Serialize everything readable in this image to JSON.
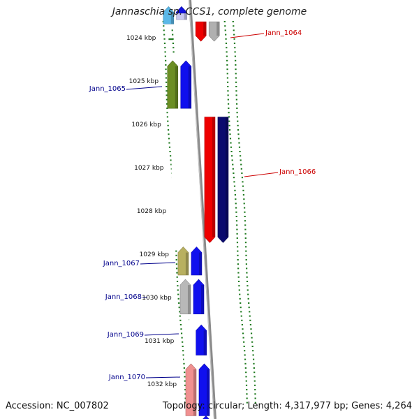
{
  "title": "Jannaschia sp. CCS1, complete genome",
  "footer": {
    "accession": "Accession: NC_007802",
    "summary": "Topology: circular; Length: 4,317,977 bp; Genes: 4,264"
  },
  "colors": {
    "tick": "#1f7a1f",
    "backbone": "#8a8a8a",
    "label_red": "#cc0000",
    "label_blue": "#00008b"
  },
  "kbp_labels": [
    "1024 kbp",
    "1025 kbp",
    "1026 kbp",
    "1027 kbp",
    "1028 kbp",
    "1029 kbp",
    "1030 kbp",
    "1031 kbp",
    "1032 kbp"
  ],
  "gene_labels": [
    {
      "id": "Jann_1064",
      "color": "red"
    },
    {
      "id": "Jann_1065",
      "color": "blue"
    },
    {
      "id": "Jann_1066",
      "color": "red"
    },
    {
      "id": "Jann_1067",
      "color": "blue"
    },
    {
      "id": "Jann_1068",
      "color": "blue"
    },
    {
      "id": "Jann_1069",
      "color": "blue"
    },
    {
      "id": "Jann_1070",
      "color": "blue"
    }
  ],
  "genes": [
    {
      "label": "",
      "strand": "-",
      "start_kbp": 1023.25,
      "end_kbp": 1023.65,
      "color": "#5bb8e8"
    },
    {
      "label": "",
      "strand": "-",
      "start_kbp": 1023.25,
      "end_kbp": 1023.55,
      "color": "#c8c8f0"
    },
    {
      "label": "",
      "strand": "-",
      "start_kbp": 1023.25,
      "end_kbp": 1023.4,
      "color": "#1010e0"
    },
    {
      "label": "",
      "strand": "+",
      "start_kbp": 1023.6,
      "end_kbp": 1024.05,
      "color": "#ee0000"
    },
    {
      "label": "",
      "strand": "+",
      "start_kbp": 1023.6,
      "end_kbp": 1024.05,
      "color": "#b0b0b0"
    },
    {
      "label": "Jann_1065",
      "strand": "-",
      "start_kbp": 1024.5,
      "end_kbp": 1025.6,
      "color": "#6b8e23"
    },
    {
      "label": "",
      "strand": "-",
      "start_kbp": 1024.5,
      "end_kbp": 1025.6,
      "color": "#1010ee"
    },
    {
      "label": "Jann_1066",
      "strand": "+",
      "start_kbp": 1025.8,
      "end_kbp": 1028.7,
      "color": "#ee0000"
    },
    {
      "label": "",
      "strand": "+",
      "start_kbp": 1025.8,
      "end_kbp": 1028.7,
      "color": "#0a0a6e"
    },
    {
      "label": "Jann_1067",
      "strand": "-",
      "start_kbp": 1028.8,
      "end_kbp": 1029.45,
      "color": "#b8b060"
    },
    {
      "label": "",
      "strand": "-",
      "start_kbp": 1028.8,
      "end_kbp": 1029.45,
      "color": "#1010ee"
    },
    {
      "label": "Jann_1068",
      "strand": "-",
      "start_kbp": 1029.55,
      "end_kbp": 1030.35,
      "color": "#b8b8b8"
    },
    {
      "label": "",
      "strand": "-",
      "start_kbp": 1029.55,
      "end_kbp": 1030.35,
      "color": "#1010ee"
    },
    {
      "label": "Jann_1069",
      "strand": "-",
      "start_kbp": 1030.6,
      "end_kbp": 1031.3,
      "color": "#1010ee"
    },
    {
      "label": "Jann_1070",
      "strand": "-",
      "start_kbp": 1031.5,
      "end_kbp": 1032.7,
      "color": "#f09090"
    },
    {
      "label": "",
      "strand": "-",
      "start_kbp": 1031.5,
      "end_kbp": 1032.7,
      "color": "#1010ee"
    },
    {
      "label": "",
      "strand": "-",
      "start_kbp": 1032.7,
      "end_kbp": 1032.8,
      "color": "#1010ee"
    }
  ]
}
